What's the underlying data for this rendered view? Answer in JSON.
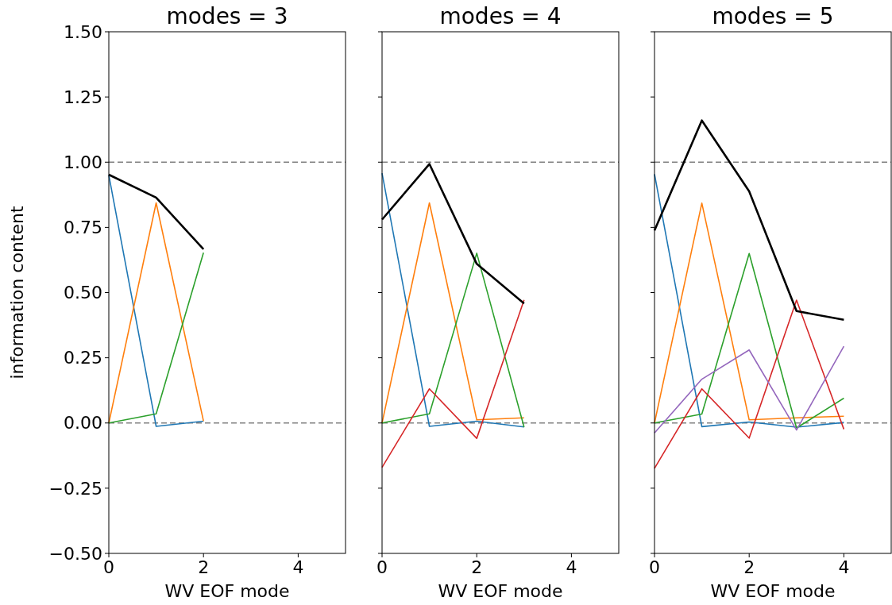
{
  "chart_data": [
    {
      "type": "line",
      "title": "modes = 3",
      "xlabel": "WV EOF mode",
      "ylabel": "information content",
      "x": [
        0,
        1,
        2
      ],
      "xlim": [
        0,
        5
      ],
      "xticks": [
        0,
        2,
        4
      ],
      "ylim": [
        -0.5,
        1.5
      ],
      "yticks": [
        {
          "value": -0.5,
          "label": "−0.50"
        },
        {
          "value": -0.25,
          "label": "−0.25"
        },
        {
          "value": 0,
          "label": "0.00"
        },
        {
          "value": 0.25,
          "label": "0.25"
        },
        {
          "value": 0.5,
          "label": "0.50"
        },
        {
          "value": 0.75,
          "label": "0.75"
        },
        {
          "value": 1,
          "label": "1.00"
        },
        {
          "value": 1.25,
          "label": "1.25"
        },
        {
          "value": 1.5,
          "label": "1.50"
        }
      ],
      "ref_lines": [
        {
          "axis": "y",
          "value": 0,
          "color": "#808080",
          "line_style": "dashed"
        },
        {
          "axis": "y",
          "value": 1,
          "color": "#808080",
          "line_style": "dashed"
        }
      ],
      "series": [
        {
          "color": "#1f77b4",
          "values": [
            0.95,
            -0.013,
            0.007
          ]
        },
        {
          "color": "#ff7f0e",
          "values": [
            0,
            0.844,
            0.007
          ]
        },
        {
          "color": "#2ca02c",
          "values": [
            0,
            0.035,
            0.653
          ]
        },
        {
          "color": "#000000",
          "values": [
            0.952,
            0.864,
            0.666
          ]
        }
      ]
    },
    {
      "type": "line",
      "title": "modes = 4",
      "xlabel": "WV EOF mode",
      "x": [
        0,
        1,
        2,
        3
      ],
      "xlim": [
        0,
        5
      ],
      "xticks": [
        0,
        2,
        4
      ],
      "ylim": [
        -0.5,
        1.5
      ],
      "yticks": [
        {
          "value": -0.5,
          "label": null
        },
        {
          "value": -0.25,
          "label": null
        },
        {
          "value": 0,
          "label": null
        },
        {
          "value": 0.25,
          "label": null
        },
        {
          "value": 0.5,
          "label": null
        },
        {
          "value": 0.75,
          "label": null
        },
        {
          "value": 1,
          "label": null
        },
        {
          "value": 1.25,
          "label": null
        },
        {
          "value": 1.5,
          "label": null
        }
      ],
      "tick_labels": "x",
      "ref_lines": [
        {
          "axis": "y",
          "value": 0,
          "color": "#808080",
          "line_style": "dashed"
        },
        {
          "axis": "y",
          "value": 1,
          "color": "#808080",
          "line_style": "dashed"
        }
      ],
      "series": [
        {
          "color": "#1f77b4",
          "values": [
            0.958,
            -0.013,
            0.007,
            -0.015
          ]
        },
        {
          "color": "#ff7f0e",
          "values": [
            0,
            0.844,
            0.012,
            0.02
          ]
        },
        {
          "color": "#2ca02c",
          "values": [
            0,
            0.035,
            0.651,
            -0.016
          ]
        },
        {
          "color": "#d62728",
          "values": [
            -0.17,
            0.131,
            -0.059,
            0.472
          ]
        },
        {
          "color": "#000000",
          "values": [
            0.78,
            0.993,
            0.61,
            0.458
          ]
        }
      ]
    },
    {
      "type": "line",
      "title": "modes = 5",
      "xlabel": "WV EOF mode",
      "x": [
        0,
        1,
        2,
        3,
        4
      ],
      "xlim": [
        0,
        5
      ],
      "xticks": [
        0,
        2,
        4
      ],
      "ylim": [
        -0.5,
        1.5
      ],
      "yticks": [
        {
          "value": -0.5,
          "label": null
        },
        {
          "value": -0.25,
          "label": null
        },
        {
          "value": 0,
          "label": null
        },
        {
          "value": 0.25,
          "label": null
        },
        {
          "value": 0.5,
          "label": null
        },
        {
          "value": 0.75,
          "label": null
        },
        {
          "value": 1,
          "label": null
        },
        {
          "value": 1.25,
          "label": null
        },
        {
          "value": 1.5,
          "label": null
        }
      ],
      "tick_labels": "x",
      "ref_lines": [
        {
          "axis": "y",
          "value": 0,
          "color": "#808080",
          "line_style": "dashed"
        },
        {
          "axis": "y",
          "value": 1,
          "color": "#808080",
          "line_style": "dashed"
        }
      ],
      "series": [
        {
          "color": "#1f77b4",
          "values": [
            0.954,
            -0.014,
            0.004,
            -0.016,
            0.002
          ]
        },
        {
          "color": "#ff7f0e",
          "values": [
            0,
            0.843,
            0.012,
            0.02,
            0.026
          ]
        },
        {
          "color": "#2ca02c",
          "values": [
            0,
            0.034,
            0.65,
            -0.019,
            0.095
          ]
        },
        {
          "color": "#d62728",
          "values": [
            -0.174,
            0.131,
            -0.058,
            0.471,
            -0.024
          ]
        },
        {
          "color": "#9467bd",
          "values": [
            -0.038,
            0.168,
            0.28,
            -0.027,
            0.294
          ]
        },
        {
          "color": "#000000",
          "values": [
            0.738,
            1.16,
            0.888,
            0.429,
            0.396
          ]
        }
      ]
    }
  ]
}
